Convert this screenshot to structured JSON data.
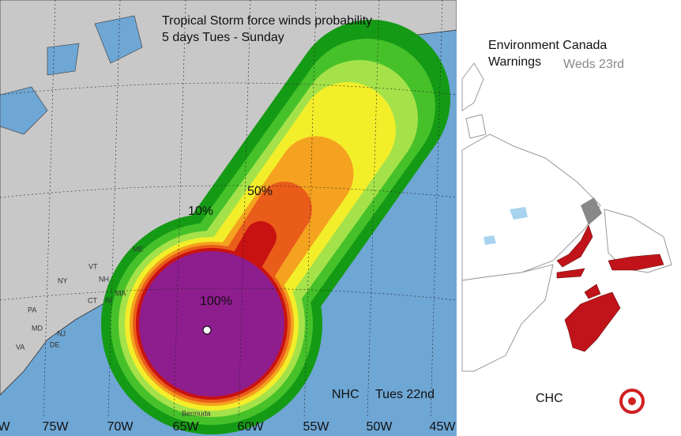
{
  "left_map": {
    "title_lines": [
      "Tropical Storm force winds probability",
      "5 days Tues - Sunday"
    ],
    "contour_labels": [
      "10%",
      "50%",
      "100%"
    ],
    "source": "NHC",
    "date": "Tues 22nd",
    "longitude_labels": [
      "W",
      "75W",
      "70W",
      "65W",
      "60W",
      "55W",
      "50W",
      "45W"
    ],
    "place_labels": [
      "ME",
      "VT",
      "NH",
      "NY",
      "MA",
      "CT",
      "RI",
      "PA",
      "NJ",
      "MD",
      "DE",
      "VA",
      "Bermuda"
    ]
  },
  "right_map": {
    "title_lines": [
      "Environment Canada",
      "Warnings"
    ],
    "date": "Weds 23rd",
    "source": "CHC"
  }
}
